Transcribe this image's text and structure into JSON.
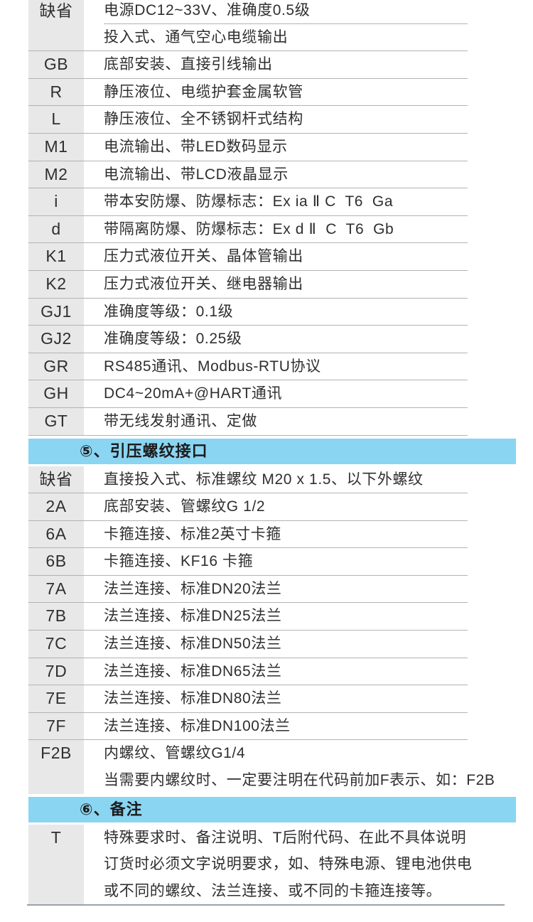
{
  "page": {
    "background": "#ffffff"
  },
  "colors": {
    "section_band_blue": "#8ad5f2",
    "code_column_gray": "#e8e8e8",
    "row_rule_gray": "#b3b3b3",
    "bottom_rule_gray": "#9aa2a9",
    "text_dark": "#2f2f2f"
  },
  "table": {
    "sections": [
      {
        "kind": "row",
        "code": "缺省",
        "lines": [
          "电源DC12~33V、准确度0.5级",
          "投入式、通气空心电缆输出"
        ],
        "inner_rule": true
      },
      {
        "kind": "row",
        "code": "GB",
        "lines": [
          "底部安装、直接引线输出"
        ]
      },
      {
        "kind": "row",
        "code": "R",
        "lines": [
          "静压液位、电缆护套金属软管"
        ]
      },
      {
        "kind": "row",
        "code": "L",
        "lines": [
          "静压液位、全不锈钢杆式结构"
        ]
      },
      {
        "kind": "row",
        "code": "M1",
        "lines": [
          "电流输出、带LED数码显示"
        ]
      },
      {
        "kind": "row",
        "code": "M2",
        "lines": [
          "电流输出、带LCD液晶显示"
        ]
      },
      {
        "kind": "row",
        "code": "i",
        "lines": [
          "带本安防爆、防爆标志：Ex ia Ⅱ C  T6  Ga"
        ]
      },
      {
        "kind": "row",
        "code": "d",
        "lines": [
          "带隔离防爆、防爆标志：Ex d Ⅱ  C  T6  Gb"
        ]
      },
      {
        "kind": "row",
        "code": "K1",
        "lines": [
          "压力式液位开关、晶体管输出"
        ]
      },
      {
        "kind": "row",
        "code": "K2",
        "lines": [
          "压力式液位开关、继电器输出"
        ]
      },
      {
        "kind": "row",
        "code": "GJ1",
        "lines": [
          "准确度等级：0.1级"
        ]
      },
      {
        "kind": "row",
        "code": "GJ2",
        "lines": [
          "准确度等级：0.25级"
        ]
      },
      {
        "kind": "row",
        "code": "GR",
        "lines": [
          "RS485通讯、Modbus-RTU协议"
        ]
      },
      {
        "kind": "row",
        "code": "GH",
        "lines": [
          "DC4~20mA+@HART通讯"
        ]
      },
      {
        "kind": "row",
        "code": "GT",
        "lines": [
          "带无线发射通讯、定做"
        ]
      },
      {
        "kind": "header",
        "label": "⑤、引压螺纹接口"
      },
      {
        "kind": "row",
        "code": "缺省",
        "lines": [
          "直接投入式、标准螺纹 M20 x 1.5、以下外螺纹"
        ]
      },
      {
        "kind": "row",
        "code": "2A",
        "lines": [
          "底部安装、管螺纹G 1/2"
        ]
      },
      {
        "kind": "row",
        "code": "6A",
        "lines": [
          "卡箍连接、标准2英寸卡箍"
        ]
      },
      {
        "kind": "row",
        "code": "6B",
        "lines": [
          "卡箍连接、KF16 卡箍"
        ]
      },
      {
        "kind": "row",
        "code": "7A",
        "lines": [
          "法兰连接、标准DN20法兰"
        ]
      },
      {
        "kind": "row",
        "code": "7B",
        "lines": [
          "法兰连接、标准DN25法兰"
        ]
      },
      {
        "kind": "row",
        "code": "7C",
        "lines": [
          "法兰连接、标准DN50法兰"
        ]
      },
      {
        "kind": "row",
        "code": "7D",
        "lines": [
          "法兰连接、标准DN65法兰"
        ]
      },
      {
        "kind": "row",
        "code": "7E",
        "lines": [
          "法兰连接、标准DN80法兰"
        ]
      },
      {
        "kind": "row",
        "code": "7F",
        "lines": [
          "法兰连接、标准DN100法兰"
        ]
      },
      {
        "kind": "row",
        "code": "F2B",
        "lines": [
          "内螺纹、管螺纹G1/4",
          "当需要内螺纹时、一定要注明在代码前加F表示、如：F2B"
        ],
        "no_bottom_rule": true
      },
      {
        "kind": "header",
        "label": "⑥、备注"
      },
      {
        "kind": "row",
        "code": "T",
        "lines": [
          "特殊要求时、备注说明、T后附代码、在此不具体说明",
          "订货时必须文字说明要求，如、特殊电源、锂电池供电",
          "或不同的螺纹、法兰连接、或不同的卡箍连接等。"
        ],
        "no_bottom_rule": true
      }
    ]
  }
}
